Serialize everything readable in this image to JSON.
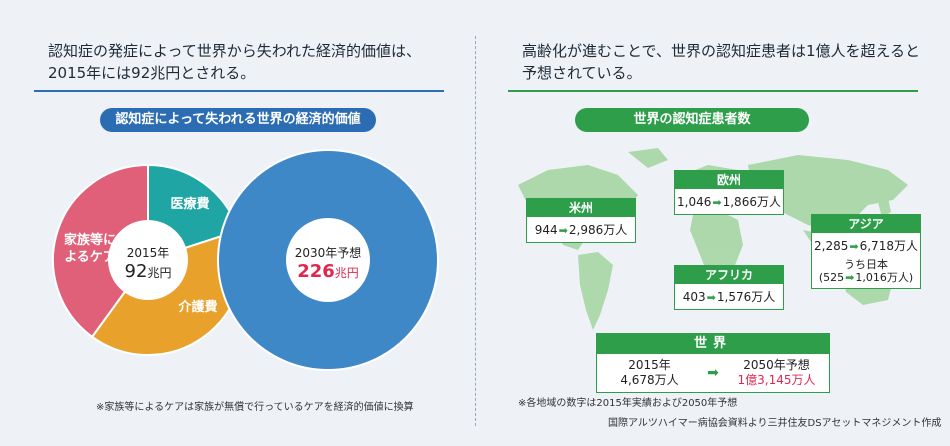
{
  "left": {
    "headline": "認知症の発症によって世界から失われた経済的価値は、2015年には92兆円とされる。",
    "pill": "認知症によって失われる世界の経済的価値",
    "note": "※家族等によるケアは家族が無償で行っているケアを経済的価値に換算",
    "labels": {
      "family": "家族等に\nよるケア",
      "medical": "医療費",
      "care": "介護費"
    }
  },
  "right": {
    "headline": "高齢化が進むことで、世界の認知症患者は1億人を超えると予想されている。",
    "pill": "世界の認知症患者数",
    "note1": "※各地域の数字は2015年実績および2050年予想",
    "note2": "国際アルツハイマー病協会資料より三井住友DSアセットマネジメント作成",
    "regions": {
      "america": {
        "name": "米州",
        "from": "944",
        "to": "2,986万人"
      },
      "europe": {
        "name": "欧州",
        "from": "1,046",
        "to": "1,866万人"
      },
      "asia": {
        "name": "アジア",
        "from": "2,285",
        "to": "6,718万人",
        "sub_label": "うち日本",
        "sub_from": "525",
        "sub_to": "1,016万人"
      },
      "africa": {
        "name": "アフリカ",
        "from": "403",
        "to": "1,576万人"
      }
    },
    "world": {
      "title": "世界",
      "y2015_label": "2015年",
      "y2015_value": "4,678万人",
      "y2050_label": "2050年予想",
      "y2050_value": "1億3,145万人"
    }
  },
  "colors": {
    "family": "#e0607a",
    "medical": "#1fa6a4",
    "care": "#e8a12b",
    "future": "#3f88c8",
    "green": "#2e9e4b",
    "red": "#e0284f"
  },
  "chart_data": [
    {
      "type": "pie",
      "categories": [
        "家族等によるケア",
        "医療費",
        "介護費"
      ],
      "values": [
        40,
        20,
        40
      ],
      "center_label": "2015年",
      "center_value": "92",
      "center_unit": "兆円"
    },
    {
      "type": "pie",
      "categories": [
        "2030年予想"
      ],
      "values": [
        226
      ],
      "center_label": "2030年予想",
      "center_value": "226",
      "center_unit": "兆円"
    }
  ]
}
